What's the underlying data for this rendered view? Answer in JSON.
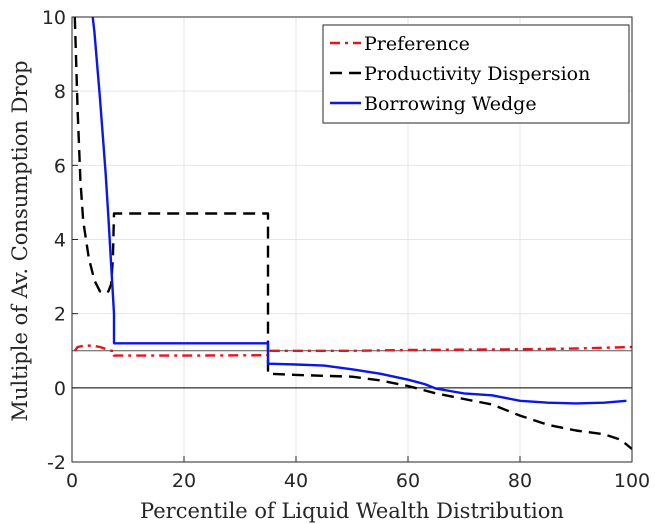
{
  "chart_data": {
    "type": "line",
    "title": "",
    "xlabel": "Percentile of Liquid Wealth Distribution",
    "ylabel": "Multiple of Av. Consumption Drop",
    "xlim": [
      0,
      100
    ],
    "ylim": [
      -2,
      10
    ],
    "xticks": [
      "0",
      "20",
      "40",
      "60",
      "80",
      "100"
    ],
    "yticks": [
      "-2",
      "0",
      "2",
      "4",
      "6",
      "8",
      "10"
    ],
    "grid": true,
    "legend_position": "top-right",
    "reference_lines": [
      {
        "y": 1,
        "color": "#555555"
      },
      {
        "y": 0,
        "color": "#000000"
      }
    ],
    "series": [
      {
        "name": "Preference",
        "color": "#e8141c",
        "style": "dashdot",
        "x": [
          0.5,
          1,
          2,
          3,
          4,
          5,
          6,
          7,
          7.5,
          7.5,
          20,
          35,
          35,
          40,
          50,
          60,
          70,
          80,
          90,
          95,
          100
        ],
        "y": [
          1.0,
          1.1,
          1.13,
          1.14,
          1.13,
          1.1,
          1.05,
          1.0,
          1.0,
          0.87,
          0.87,
          0.88,
          1.0,
          1.0,
          1.0,
          1.02,
          1.03,
          1.04,
          1.06,
          1.08,
          1.1
        ]
      },
      {
        "name": "Productivity Dispersion",
        "color": "#000000",
        "style": "dashed",
        "x": [
          0.5,
          1,
          1.5,
          2,
          3,
          4,
          5,
          6,
          6.5,
          7,
          7.3,
          7.5,
          7.5,
          35,
          35,
          40,
          50,
          55,
          60,
          65,
          70,
          75,
          80,
          85,
          90,
          95,
          98,
          100
        ],
        "y": [
          10,
          7.5,
          5.6,
          4.5,
          3.5,
          2.9,
          2.6,
          2.55,
          2.6,
          2.8,
          3.5,
          4.7,
          4.7,
          4.7,
          0.38,
          0.35,
          0.3,
          0.2,
          0.05,
          -0.15,
          -0.3,
          -0.45,
          -0.75,
          -1.0,
          -1.15,
          -1.25,
          -1.4,
          -1.65
        ]
      },
      {
        "name": "Borrowing Wedge",
        "color": "#0b16e8",
        "style": "solid",
        "x": [
          3.7,
          4,
          5,
          6,
          6.5,
          7,
          7.5,
          7.5,
          35,
          35,
          40,
          45,
          50,
          55,
          60,
          63,
          65,
          68,
          70,
          75,
          80,
          85,
          90,
          95,
          99
        ],
        "y": [
          10,
          9.6,
          7.8,
          5.8,
          4.6,
          3.3,
          2.0,
          1.2,
          1.2,
          0.65,
          0.63,
          0.6,
          0.5,
          0.38,
          0.22,
          0.1,
          -0.02,
          -0.1,
          -0.15,
          -0.2,
          -0.35,
          -0.4,
          -0.42,
          -0.4,
          -0.35
        ]
      }
    ]
  }
}
